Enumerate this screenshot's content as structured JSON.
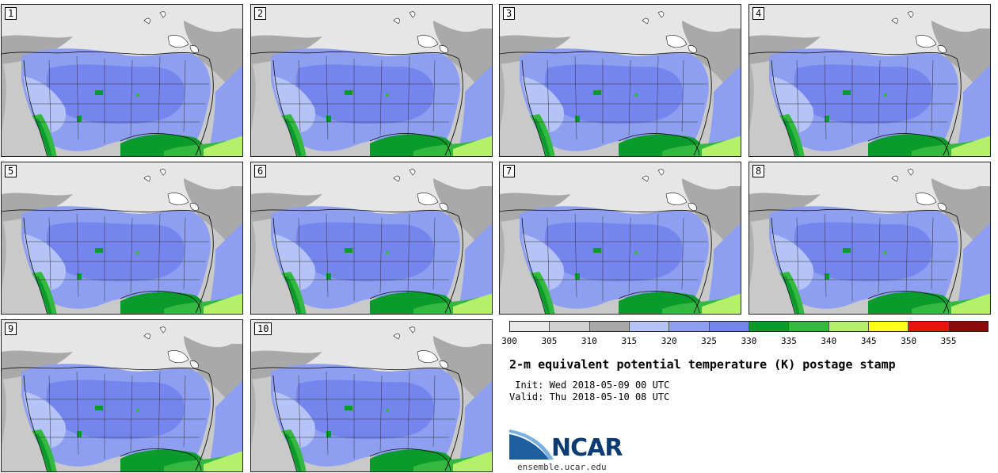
{
  "members": [
    "1",
    "2",
    "3",
    "4",
    "5",
    "6",
    "7",
    "8",
    "9",
    "10"
  ],
  "colorbar": {
    "colors": [
      "#e8e8e8",
      "#d0d0d0",
      "#a8a8a8",
      "#b5c3f7",
      "#8e9ff2",
      "#7585ee",
      "#0b9b2c",
      "#34b840",
      "#b6ef6a",
      "#ffff1a",
      "#e8140a",
      "#8b0b0b"
    ],
    "ticks": [
      "300",
      "305",
      "310",
      "315",
      "320",
      "325",
      "330",
      "335",
      "340",
      "345",
      "350",
      "355"
    ]
  },
  "title": "2-m equivalent potential temperature (K) postage stamp",
  "init_line": " Init: Wed 2018-05-09 00 UTC",
  "valid_line": "Valid: Thu 2018-05-10 08 UTC",
  "logo_text": "NCAR",
  "url": "ensemble.ucar.edu"
}
